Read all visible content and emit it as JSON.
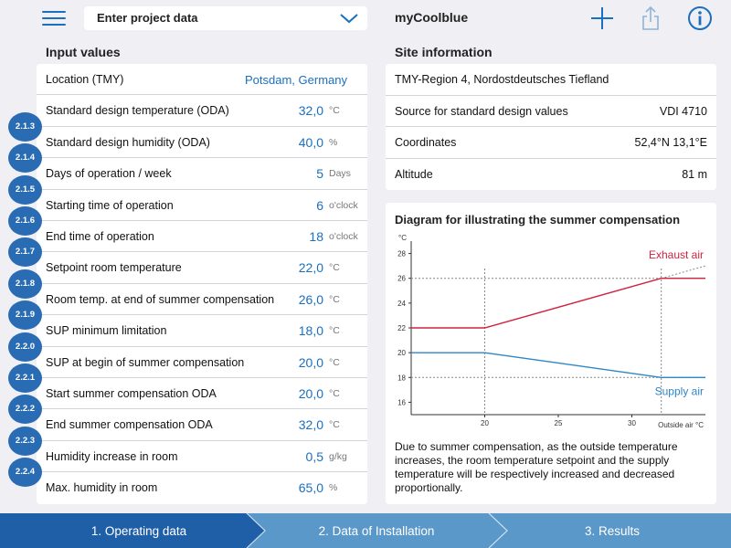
{
  "header": {
    "project_select": "Enter project data",
    "app_title": "myCoolblue"
  },
  "left": {
    "title": "Input values",
    "location": {
      "label": "Location (TMY)",
      "value": "Potsdam, Germany"
    },
    "rows": [
      {
        "label": "Standard design temperature (ODA)",
        "value": "32,0",
        "unit": "°C"
      },
      {
        "badge": "2.1.3",
        "label": "Standard design humidity (ODA)",
        "value": "40,0",
        "unit": "%"
      },
      {
        "badge": "2.1.4",
        "label": "Days of operation / week",
        "value": "5",
        "unit": "Days"
      },
      {
        "badge": "2.1.5",
        "label": "Starting time of operation",
        "value": "6",
        "unit": "o'clock"
      },
      {
        "badge": "2.1.6",
        "label": "End time of operation",
        "value": "18",
        "unit": "o'clock"
      },
      {
        "badge": "2.1.7",
        "label": "Setpoint room temperature",
        "value": "22,0",
        "unit": "°C"
      },
      {
        "badge": "2.1.8",
        "label": "Room temp. at end of summer compensation",
        "value": "26,0",
        "unit": "°C"
      },
      {
        "badge": "2.1.9",
        "label": "SUP minimum limitation",
        "value": "18,0",
        "unit": "°C"
      },
      {
        "badge": "2.2.0",
        "label": "SUP at begin of summer compensation",
        "value": "20,0",
        "unit": "°C"
      },
      {
        "badge": "2.2.1",
        "label": "Start summer compensation ODA",
        "value": "20,0",
        "unit": "°C"
      },
      {
        "badge": "2.2.2",
        "label": "End summer compensation ODA",
        "value": "32,0",
        "unit": "°C"
      },
      {
        "badge": "2.2.3",
        "label": "Humidity increase in room",
        "value": "0,5",
        "unit": "g/kg"
      },
      {
        "badge": "2.2.4",
        "label": "Max. humidity in room",
        "value": "65,0",
        "unit": "%"
      }
    ]
  },
  "site": {
    "title": "Site information",
    "region": "TMY-Region 4, Nordostdeutsches Tiefland",
    "rows": [
      {
        "label": "Source for standard design values",
        "value": "VDI 4710"
      },
      {
        "label": "Coordinates",
        "value": "52,4°N 13,1°E"
      },
      {
        "label": "Altitude",
        "value": "81 m"
      }
    ]
  },
  "diagram": {
    "title": "Diagram for illustrating the summer compensation",
    "description": "Due to summer compensation, as the outside temperature increases, the room temperature setpoint and the supply temperature will be respectively increased and decreased proportionally."
  },
  "chart_data": {
    "type": "line",
    "ylabel": "°C",
    "xlabel": "Outside air °C",
    "xlim": [
      15,
      35
    ],
    "ylim": [
      15,
      29
    ],
    "x_ticks": [
      20,
      25,
      30
    ],
    "y_ticks": [
      16,
      18,
      20,
      22,
      24,
      26,
      28
    ],
    "y_tick_labels": [
      "16",
      "18",
      "20",
      "22",
      "24",
      "26",
      "28"
    ],
    "series": [
      {
        "name": "Exhaust air",
        "color": "#d0213f",
        "x": [
          15,
          20,
          32,
          35
        ],
        "y": [
          22,
          22,
          26,
          26
        ]
      },
      {
        "name": "Supply air",
        "color": "#2f86c6",
        "x": [
          15,
          20,
          32,
          35
        ],
        "y": [
          20,
          20,
          18,
          18
        ]
      }
    ],
    "reference_lines": {
      "x": [
        20,
        32
      ],
      "y": [
        18,
        26
      ],
      "extension": {
        "x": [
          32,
          35
        ],
        "y": [
          26,
          27
        ]
      }
    }
  },
  "steps": [
    {
      "label": "1. Operating data",
      "active": true
    },
    {
      "label": "2. Data of Installation",
      "active": false
    },
    {
      "label": "3. Results",
      "active": false
    }
  ],
  "colors": {
    "accent": "#1a6fc0",
    "badge": "#2a6cb3",
    "step_active": "#1f5fa8",
    "step_inactive": "#5a98c9"
  }
}
